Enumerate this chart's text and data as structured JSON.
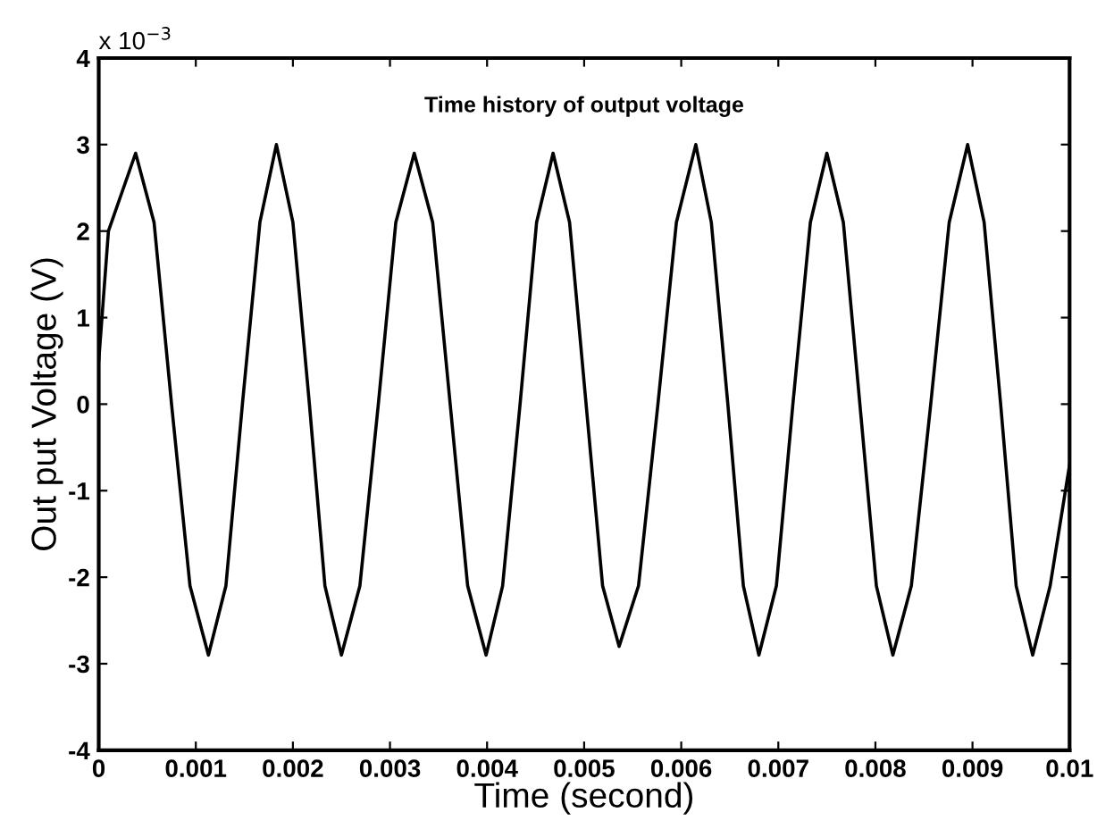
{
  "chart_data": {
    "type": "line",
    "title": "Time history of output voltage",
    "xlabel": "Time (second)",
    "ylabel": "Out put Voltage (V)",
    "annotations": [
      "x 10$^{−3}$"
    ],
    "x": [
      0,
      0.0001,
      0.00038,
      0.00057,
      0.00075,
      0.00094,
      0.00113,
      0.00131,
      0.00148,
      0.00166,
      0.00183,
      0.002,
      0.00217,
      0.00233,
      0.0025,
      0.00269,
      0.00288,
      0.00306,
      0.00325,
      0.00344,
      0.00362,
      0.0038,
      0.00399,
      0.00416,
      0.00434,
      0.00451,
      0.00468,
      0.00485,
      0.00502,
      0.00519,
      0.00536,
      0.00556,
      0.00576,
      0.00595,
      0.00615,
      0.00631,
      0.00648,
      0.00664,
      0.0068,
      0.00698,
      0.00715,
      0.00733,
      0.0075,
      0.00767,
      0.00784,
      0.00801,
      0.00818,
      0.00837,
      0.00857,
      0.00876,
      0.00895,
      0.00912,
      0.00929,
      0.00945,
      0.00962,
      0.0098,
      0.01
    ],
    "series": [
      {
        "color": "#000000",
        "values": [
          0.5,
          2.0,
          2.9,
          2.1,
          0,
          -2.1,
          -2.9,
          -2.1,
          0,
          2.1,
          3.0,
          2.1,
          0,
          -2.1,
          -2.9,
          -2.1,
          0,
          2.1,
          2.9,
          2.1,
          0,
          -2.1,
          -2.9,
          -2.1,
          0,
          2.1,
          2.9,
          2.1,
          0,
          -2.1,
          -2.8,
          -2.1,
          0,
          2.1,
          3.0,
          2.1,
          0,
          -2.1,
          -2.9,
          -2.1,
          0,
          2.1,
          2.9,
          2.1,
          0,
          -2.1,
          -2.9,
          -2.1,
          0,
          2.1,
          3.0,
          2.1,
          0,
          -2.1,
          -2.9,
          -2.1,
          -0.7
        ]
      }
    ],
    "xlim": [
      0,
      0.01
    ],
    "ylim": [
      -4,
      4
    ],
    "xticks": [
      0,
      0.001,
      0.002,
      0.003,
      0.004,
      0.005,
      0.006,
      0.007,
      0.008,
      0.009,
      0.01
    ],
    "yticks": [
      -4,
      -3,
      -2,
      -1,
      0,
      1,
      2,
      3,
      4
    ],
    "grid": false,
    "legend": false,
    "marker": "none",
    "line_style": "solid"
  }
}
